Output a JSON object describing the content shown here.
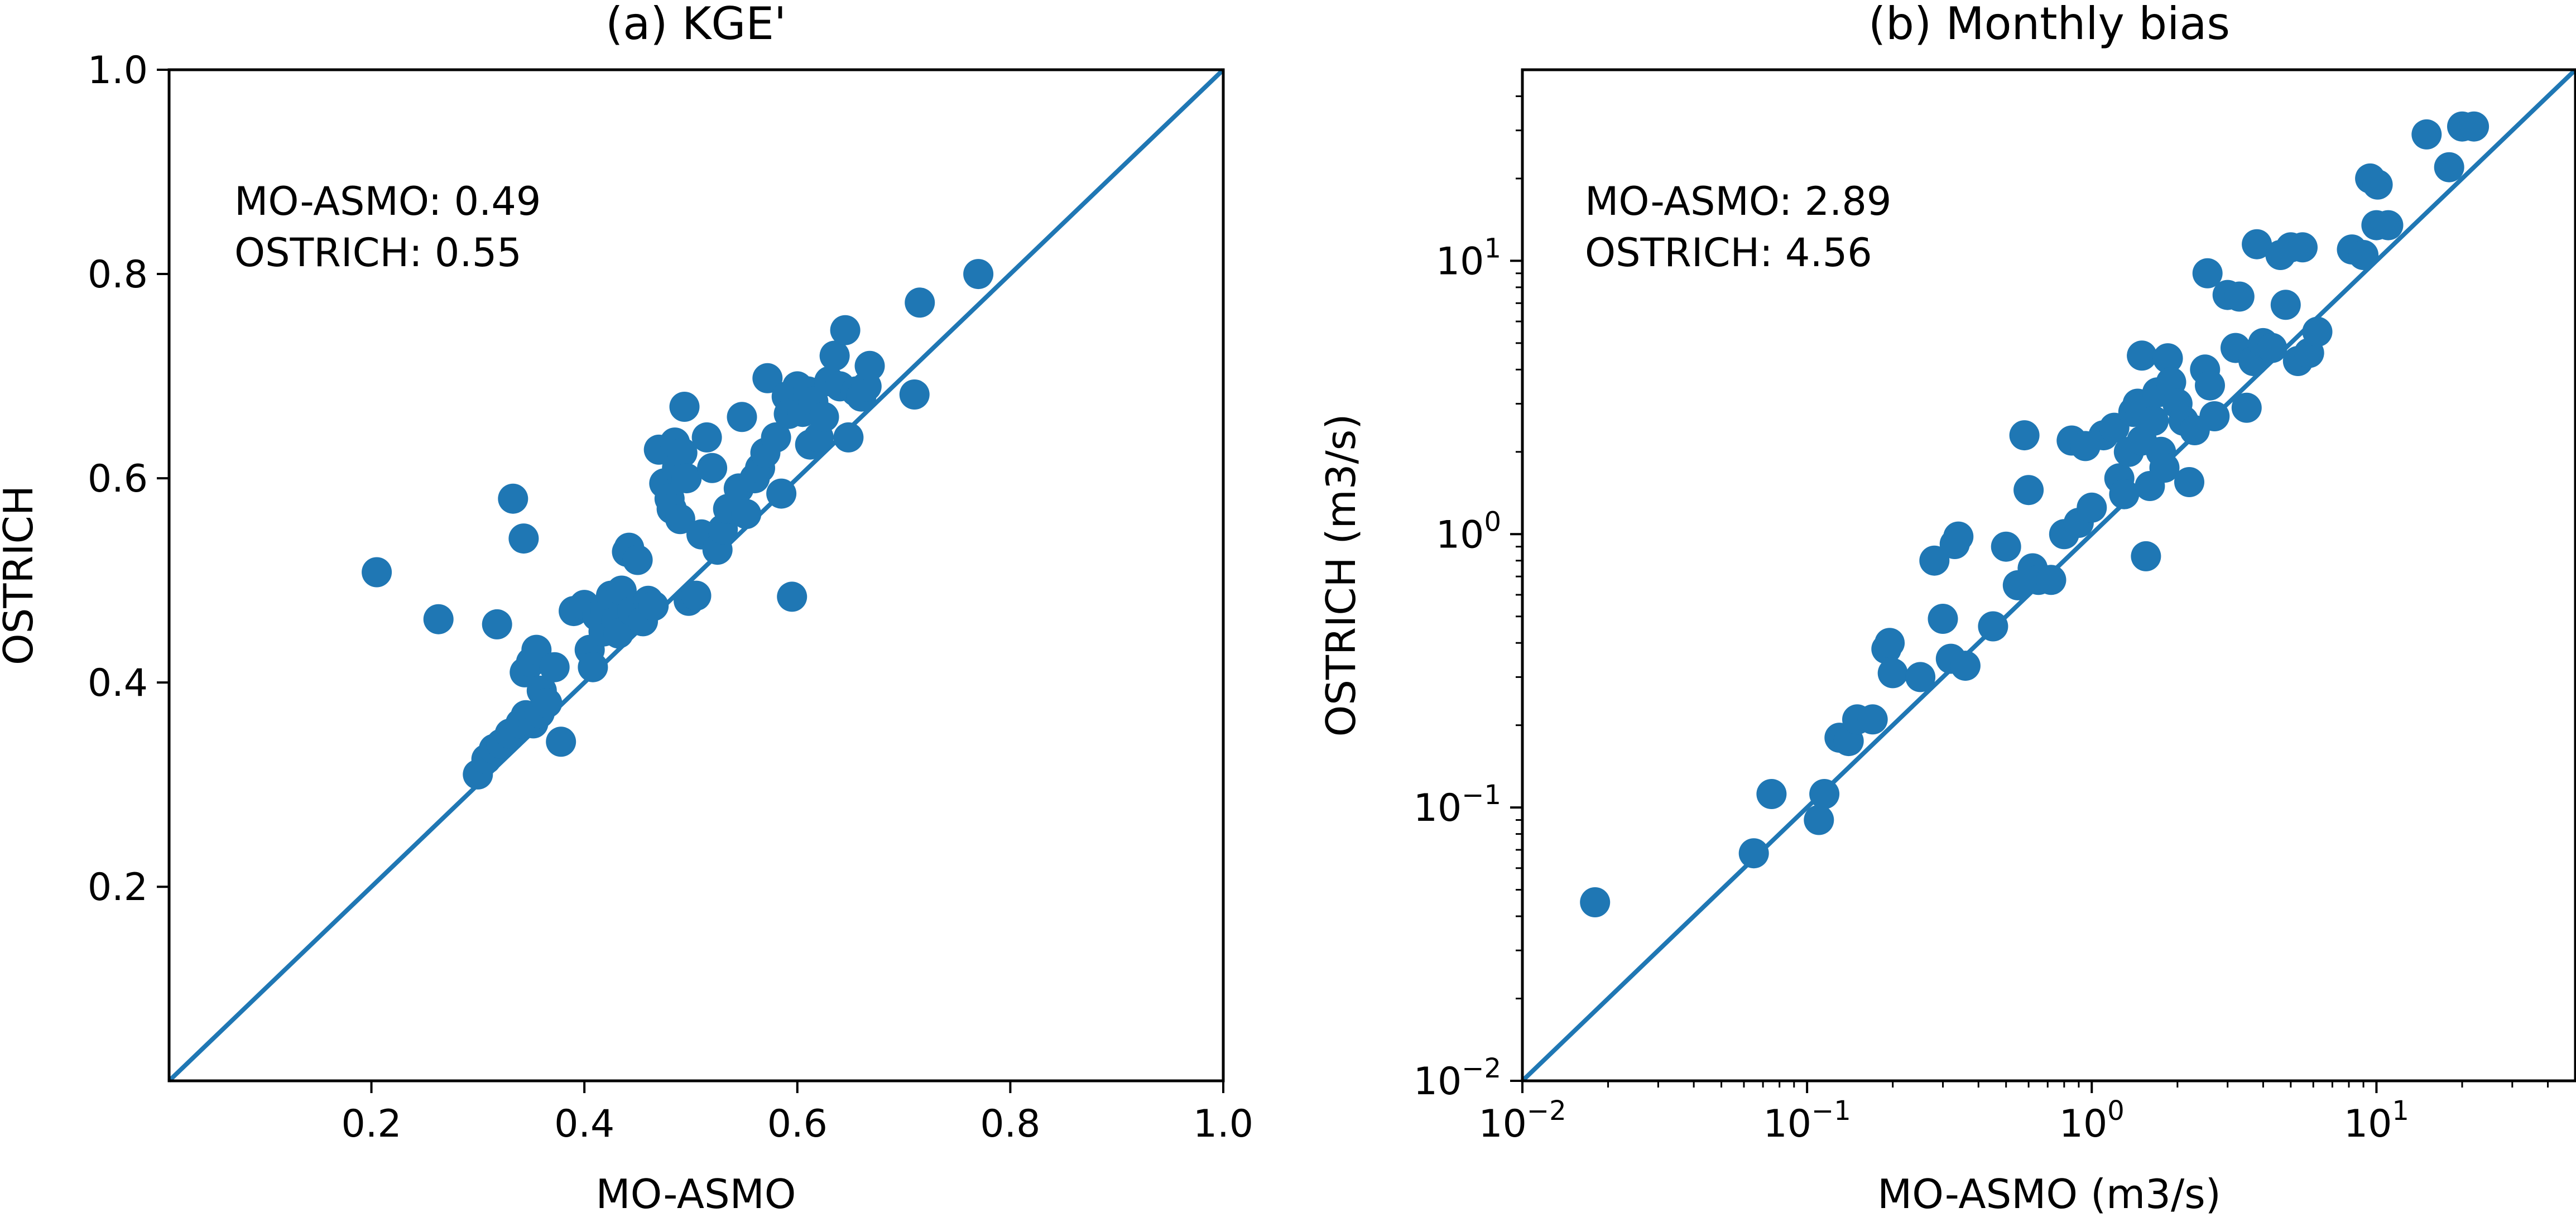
{
  "colors": {
    "series": "#1f77b4",
    "axis": "#000000"
  },
  "chart_data": [
    {
      "type": "scatter",
      "title": "(a) KGE'",
      "xlabel": "MO-ASMO",
      "ylabel": "OSTRICH",
      "xlim": [
        0.01,
        1.0
      ],
      "ylim": [
        0.01,
        1.0
      ],
      "xscale": "linear",
      "yscale": "linear",
      "xticks": [
        0.2,
        0.4,
        0.6,
        0.8,
        1.0
      ],
      "xtick_labels": [
        "0.2",
        "0.4",
        "0.6",
        "0.8",
        "1.0"
      ],
      "yticks": [
        0.2,
        0.4,
        0.6,
        0.8,
        1.0
      ],
      "ytick_labels": [
        "0.2",
        "0.4",
        "0.6",
        "0.8",
        "1.0"
      ],
      "reference_line": "1:1",
      "grid": false,
      "annotations": [
        "MO-ASMO: 0.49",
        "OSTRICH: 0.55"
      ],
      "points": [
        [
          0.205,
          0.508
        ],
        [
          0.263,
          0.462
        ],
        [
          0.318,
          0.457
        ],
        [
          0.333,
          0.58
        ],
        [
          0.343,
          0.541
        ],
        [
          0.3,
          0.31
        ],
        [
          0.308,
          0.325
        ],
        [
          0.315,
          0.335
        ],
        [
          0.322,
          0.34
        ],
        [
          0.33,
          0.35
        ],
        [
          0.34,
          0.36
        ],
        [
          0.345,
          0.368
        ],
        [
          0.352,
          0.36
        ],
        [
          0.358,
          0.37
        ],
        [
          0.36,
          0.392
        ],
        [
          0.365,
          0.38
        ],
        [
          0.378,
          0.342
        ],
        [
          0.344,
          0.41
        ],
        [
          0.35,
          0.42
        ],
        [
          0.355,
          0.432
        ],
        [
          0.372,
          0.415
        ],
        [
          0.39,
          0.47
        ],
        [
          0.4,
          0.476
        ],
        [
          0.405,
          0.432
        ],
        [
          0.408,
          0.415
        ],
        [
          0.412,
          0.465
        ],
        [
          0.418,
          0.45
        ],
        [
          0.42,
          0.47
        ],
        [
          0.425,
          0.485
        ],
        [
          0.43,
          0.46
        ],
        [
          0.432,
          0.448
        ],
        [
          0.435,
          0.49
        ],
        [
          0.44,
          0.528
        ],
        [
          0.442,
          0.532
        ],
        [
          0.445,
          0.47
        ],
        [
          0.45,
          0.52
        ],
        [
          0.455,
          0.46
        ],
        [
          0.46,
          0.48
        ],
        [
          0.465,
          0.475
        ],
        [
          0.47,
          0.628
        ],
        [
          0.475,
          0.595
        ],
        [
          0.48,
          0.58
        ],
        [
          0.482,
          0.57
        ],
        [
          0.485,
          0.635
        ],
        [
          0.487,
          0.61
        ],
        [
          0.49,
          0.56
        ],
        [
          0.492,
          0.625
        ],
        [
          0.494,
          0.67
        ],
        [
          0.496,
          0.6
        ],
        [
          0.498,
          0.48
        ],
        [
          0.505,
          0.485
        ],
        [
          0.51,
          0.545
        ],
        [
          0.515,
          0.64
        ],
        [
          0.52,
          0.61
        ],
        [
          0.525,
          0.53
        ],
        [
          0.53,
          0.55
        ],
        [
          0.535,
          0.57
        ],
        [
          0.54,
          0.57
        ],
        [
          0.545,
          0.59
        ],
        [
          0.548,
          0.66
        ],
        [
          0.552,
          0.565
        ],
        [
          0.56,
          0.6
        ],
        [
          0.565,
          0.61
        ],
        [
          0.57,
          0.625
        ],
        [
          0.572,
          0.698
        ],
        [
          0.58,
          0.64
        ],
        [
          0.585,
          0.585
        ],
        [
          0.59,
          0.68
        ],
        [
          0.592,
          0.663
        ],
        [
          0.595,
          0.484
        ],
        [
          0.6,
          0.69
        ],
        [
          0.605,
          0.665
        ],
        [
          0.61,
          0.685
        ],
        [
          0.612,
          0.633
        ],
        [
          0.615,
          0.675
        ],
        [
          0.62,
          0.64
        ],
        [
          0.625,
          0.66
        ],
        [
          0.63,
          0.695
        ],
        [
          0.635,
          0.72
        ],
        [
          0.64,
          0.69
        ],
        [
          0.645,
          0.745
        ],
        [
          0.648,
          0.64
        ],
        [
          0.655,
          0.685
        ],
        [
          0.66,
          0.68
        ],
        [
          0.665,
          0.69
        ],
        [
          0.668,
          0.71
        ],
        [
          0.71,
          0.682
        ],
        [
          0.715,
          0.772
        ],
        [
          0.77,
          0.8
        ]
      ]
    },
    {
      "type": "scatter",
      "title": "(b) Monthly bias",
      "xlabel": "MO-ASMO (m3/s)",
      "ylabel": "OSTRICH (m3/s)",
      "xlim": [
        0.01,
        50
      ],
      "ylim": [
        0.01,
        50
      ],
      "xscale": "log",
      "yscale": "log",
      "xticks": [
        0.01,
        0.1,
        1,
        10
      ],
      "xtick_labels": [
        {
          "base": "10",
          "exp": "−2"
        },
        {
          "base": "10",
          "exp": "−1"
        },
        {
          "base": "10",
          "exp": "0"
        },
        {
          "base": "10",
          "exp": "1"
        }
      ],
      "yticks": [
        0.01,
        0.1,
        1,
        10
      ],
      "ytick_labels": [
        {
          "base": "10",
          "exp": "−2"
        },
        {
          "base": "10",
          "exp": "−1"
        },
        {
          "base": "10",
          "exp": "0"
        },
        {
          "base": "10",
          "exp": "1"
        }
      ],
      "reference_line": "1:1",
      "grid": false,
      "annotations": [
        "MO-ASMO: 2.89",
        "OSTRICH: 4.56"
      ],
      "points": [
        [
          0.018,
          0.045
        ],
        [
          0.065,
          0.068
        ],
        [
          0.075,
          0.112
        ],
        [
          0.11,
          0.09
        ],
        [
          0.115,
          0.112
        ],
        [
          0.13,
          0.18
        ],
        [
          0.14,
          0.175
        ],
        [
          0.15,
          0.21
        ],
        [
          0.17,
          0.21
        ],
        [
          0.19,
          0.38
        ],
        [
          0.195,
          0.4
        ],
        [
          0.2,
          0.31
        ],
        [
          0.25,
          0.3
        ],
        [
          0.28,
          0.8
        ],
        [
          0.3,
          0.49
        ],
        [
          0.32,
          0.35
        ],
        [
          0.33,
          0.92
        ],
        [
          0.34,
          0.98
        ],
        [
          0.36,
          0.33
        ],
        [
          0.45,
          0.46
        ],
        [
          0.5,
          0.9
        ],
        [
          0.55,
          0.65
        ],
        [
          0.58,
          2.3
        ],
        [
          0.6,
          1.45
        ],
        [
          0.62,
          0.75
        ],
        [
          0.65,
          0.68
        ],
        [
          0.72,
          0.68
        ],
        [
          0.8,
          1.0
        ],
        [
          0.85,
          2.2
        ],
        [
          0.9,
          1.1
        ],
        [
          0.95,
          2.1
        ],
        [
          1.0,
          1.25
        ],
        [
          1.1,
          2.3
        ],
        [
          1.2,
          2.45
        ],
        [
          1.25,
          1.6
        ],
        [
          1.3,
          1.4
        ],
        [
          1.35,
          2.0
        ],
        [
          1.4,
          2.8
        ],
        [
          1.45,
          3.0
        ],
        [
          1.5,
          2.2
        ],
        [
          1.5,
          4.5
        ],
        [
          1.55,
          0.83
        ],
        [
          1.6,
          1.5
        ],
        [
          1.65,
          2.6
        ],
        [
          1.7,
          3.3
        ],
        [
          1.75,
          2.0
        ],
        [
          1.8,
          1.75
        ],
        [
          1.85,
          4.4
        ],
        [
          1.9,
          3.6
        ],
        [
          2.0,
          3.0
        ],
        [
          2.1,
          2.6
        ],
        [
          2.2,
          1.55
        ],
        [
          2.3,
          2.4
        ],
        [
          2.5,
          4.0
        ],
        [
          2.55,
          9.0
        ],
        [
          2.6,
          3.5
        ],
        [
          2.7,
          2.7
        ],
        [
          3.0,
          7.5
        ],
        [
          3.2,
          4.8
        ],
        [
          3.3,
          7.4
        ],
        [
          3.5,
          2.9
        ],
        [
          3.7,
          4.3
        ],
        [
          3.8,
          11.5
        ],
        [
          4.0,
          5.0
        ],
        [
          4.3,
          4.8
        ],
        [
          4.6,
          10.5
        ],
        [
          4.8,
          6.9
        ],
        [
          5.0,
          11.2
        ],
        [
          5.3,
          4.3
        ],
        [
          5.5,
          11.2
        ],
        [
          5.8,
          4.6
        ],
        [
          6.2,
          5.5
        ],
        [
          8.2,
          11.0
        ],
        [
          9.0,
          10.5
        ],
        [
          9.5,
          20.0
        ],
        [
          10.0,
          13.5
        ],
        [
          10.1,
          19.0
        ],
        [
          11.0,
          13.5
        ],
        [
          15.0,
          29.0
        ],
        [
          18.0,
          22.0
        ],
        [
          20.0,
          31.0
        ],
        [
          22.0,
          31.0
        ]
      ]
    }
  ]
}
